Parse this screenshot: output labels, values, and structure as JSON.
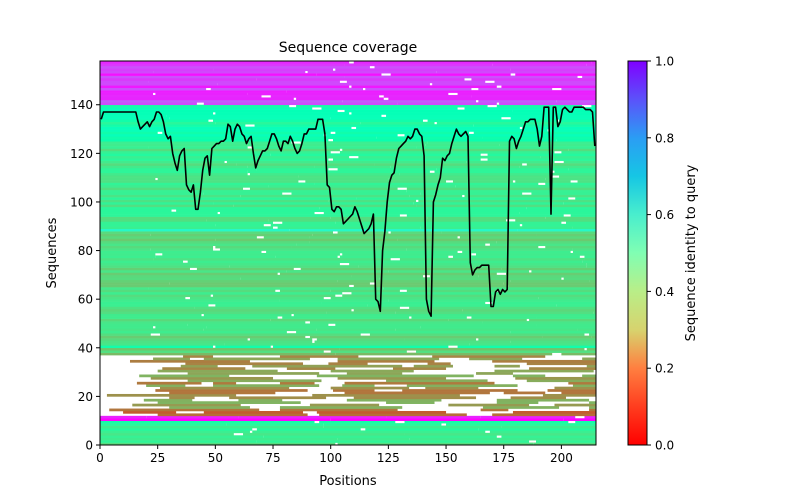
{
  "chart_data": {
    "type": "heatmap",
    "title": "Sequence coverage",
    "xlabel": "Positions",
    "ylabel": "Sequences",
    "xlim": [
      0,
      215
    ],
    "ylim": [
      0,
      158
    ],
    "xticks": [
      0,
      25,
      50,
      75,
      100,
      125,
      150,
      175,
      200
    ],
    "yticks": [
      0,
      20,
      40,
      60,
      80,
      100,
      120,
      140
    ],
    "colorbar": {
      "label": "Sequence identity to query",
      "range": [
        0.0,
        1.0
      ],
      "ticks": [
        0.0,
        0.2,
        0.4,
        0.6,
        0.8,
        1.0
      ],
      "colormap": "rainbow_r"
    },
    "row_bands": [
      {
        "from": 0,
        "to": 9,
        "identity": 0.38,
        "note": "low-identity block, near full length"
      },
      {
        "from": 9,
        "to": 10,
        "identity": 0.5
      },
      {
        "from": 10,
        "to": 12,
        "identity": 1.0,
        "note": "query sequence"
      },
      {
        "from": 12,
        "to": 14,
        "identity": 0.1
      },
      {
        "from": 14,
        "to": 37,
        "identity": 0.2,
        "note": "orange/red low-identity rows"
      },
      {
        "from": 37,
        "to": 40,
        "identity": 0.3
      },
      {
        "from": 40,
        "to": 41,
        "identity": 0.5
      },
      {
        "from": 41,
        "to": 88,
        "identity": 0.34
      },
      {
        "from": 88,
        "to": 89,
        "identity": 0.62
      },
      {
        "from": 89,
        "to": 125,
        "identity": 0.38
      },
      {
        "from": 125,
        "to": 140,
        "identity": 0.47
      },
      {
        "from": 140,
        "to": 158,
        "identity": 0.93,
        "note": "high-identity blue/purple rows"
      }
    ],
    "coverage_line": {
      "name": "coverage",
      "color": "#000000",
      "x": [
        0,
        1,
        2,
        5,
        10,
        15,
        16,
        17,
        18,
        19,
        20,
        21,
        22,
        23,
        24,
        25,
        26,
        27,
        28,
        29,
        30,
        31,
        32,
        33,
        34,
        35,
        36,
        37,
        38,
        39,
        40,
        41,
        42,
        43,
        44,
        45,
        46,
        47,
        48,
        49,
        50,
        51,
        52,
        53,
        54,
        55,
        56,
        57,
        58,
        59,
        60,
        61,
        62,
        63,
        64,
        65,
        66,
        67,
        68,
        69,
        70,
        71,
        72,
        73,
        74,
        75,
        76,
        77,
        78,
        79,
        80,
        81,
        82,
        83,
        84,
        85,
        86,
        87,
        88,
        89,
        90,
        91,
        92,
        93,
        94,
        95,
        96,
        97,
        98,
        99,
        100,
        101,
        102,
        103,
        104,
        105,
        106,
        107,
        108,
        109,
        110,
        111,
        112,
        113,
        114,
        115,
        116,
        117,
        118,
        119,
        120,
        121,
        122,
        123,
        124,
        125,
        126,
        127,
        128,
        129,
        130,
        131,
        132,
        133,
        134,
        135,
        136,
        137,
        138,
        139,
        140,
        141,
        142,
        143,
        144,
        145,
        146,
        147,
        148,
        149,
        150,
        151,
        152,
        153,
        154,
        155,
        156,
        157,
        158,
        159,
        160,
        161,
        162,
        163,
        164,
        165,
        166,
        167,
        168,
        169,
        170,
        171,
        172,
        173,
        174,
        175,
        176,
        177,
        178,
        179,
        180,
        181,
        182,
        183,
        184,
        185,
        186,
        187,
        188,
        189,
        190,
        191,
        192,
        193,
        194,
        195,
        196,
        197,
        198,
        199,
        200,
        201,
        202,
        203,
        204,
        205,
        206,
        207,
        208,
        209,
        210,
        211,
        212,
        213,
        214
      ],
      "y": [
        134,
        137,
        137,
        137,
        137,
        137,
        133,
        130,
        131,
        132,
        133,
        131,
        133,
        134,
        137,
        137,
        136,
        133,
        128,
        126,
        127,
        120,
        116,
        113,
        119,
        121,
        122,
        107,
        105,
        104,
        107,
        97,
        97,
        104,
        113,
        118,
        119,
        111,
        122,
        123,
        124,
        124,
        125,
        125,
        126,
        132,
        131,
        125,
        130,
        132,
        131,
        128,
        127,
        124,
        126,
        127,
        120,
        114,
        117,
        119,
        121,
        121,
        122,
        125,
        128,
        128,
        126,
        123,
        121,
        125,
        125,
        124,
        127,
        125,
        122,
        120,
        121,
        124,
        128,
        128,
        130,
        130,
        130,
        130,
        134,
        134,
        134,
        128,
        107,
        106,
        97,
        96,
        98,
        98,
        97,
        91,
        92,
        93,
        94,
        95,
        98,
        96,
        93,
        90,
        87,
        88,
        89,
        91,
        95,
        60,
        59,
        55,
        80,
        88,
        100,
        108,
        111,
        112,
        118,
        122,
        123,
        124,
        125,
        127,
        126,
        127,
        130,
        130,
        128,
        127,
        119,
        60,
        55,
        53,
        100,
        103,
        107,
        110,
        118,
        117,
        119,
        120,
        124,
        127,
        130,
        128,
        127,
        128,
        129,
        127,
        75,
        70,
        72,
        73,
        73,
        74,
        74,
        74,
        74,
        57,
        57,
        63,
        64,
        62,
        64,
        63,
        64,
        125,
        127,
        126,
        122,
        125,
        127,
        130,
        133,
        133,
        134,
        134,
        134,
        130,
        123,
        127,
        139,
        139,
        139,
        95,
        139,
        139,
        131,
        133,
        138,
        139,
        138,
        137,
        137,
        139,
        139,
        139,
        139,
        139,
        138,
        138,
        138,
        137,
        123,
        136,
        136,
        135,
        133,
        118,
        118,
        131
      ]
    }
  }
}
